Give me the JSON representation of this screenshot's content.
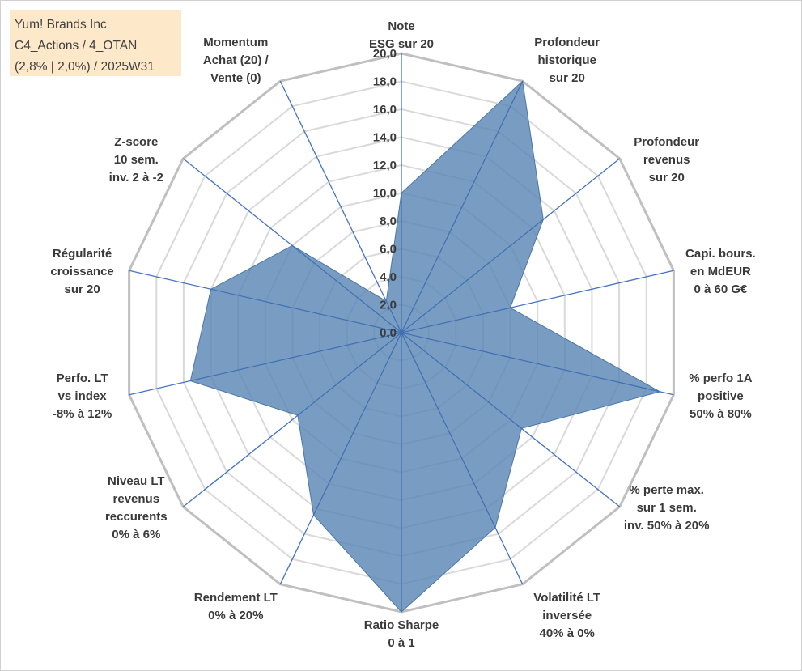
{
  "info_box": {
    "line1": "Yum! Brands Inc",
    "line2": "C4_Actions / 4_OTAN",
    "line3": "(2,8% | 2,0%) / 2025W31"
  },
  "colors": {
    "fill": "#5b86b6",
    "fill_opacity": 0.82,
    "grid_outer": "#bfbfbf",
    "grid_inner": "#d9d9d9",
    "spoke": "#4472c4",
    "info_bg": "#fde9c9"
  },
  "chart_data": {
    "type": "radar",
    "rlim": [
      0,
      20
    ],
    "rtick_step": 2,
    "tick_labels": [
      "0,0",
      "2,0",
      "4,0",
      "6,0",
      "8,0",
      "10,0",
      "12,0",
      "14,0",
      "16,0",
      "18,0",
      "20,0"
    ],
    "grid": true,
    "legend": "none",
    "axes": [
      {
        "label": [
          "Note",
          "ESG sur 20"
        ],
        "value": 10.0
      },
      {
        "label": [
          "Profondeur",
          "historique",
          "sur 20"
        ],
        "value": 20.0
      },
      {
        "label": [
          "Profondeur",
          "revenus",
          "sur 20"
        ],
        "value": 13.0
      },
      {
        "label": [
          "Capi. bours.",
          "en MdEUR",
          "0 à 60 G€"
        ],
        "value": 8.0
      },
      {
        "label": [
          "% perfo 1A",
          "positive",
          "50% à 80%"
        ],
        "value": 19.0
      },
      {
        "label": [
          "% perte max.",
          "sur 1 sem.",
          "inv. 50% à 20%"
        ],
        "value": 11.0
      },
      {
        "label": [
          "Volatilité LT",
          "inversée",
          "40% à 0%"
        ],
        "value": 15.5
      },
      {
        "label": [
          "Ratio Sharpe",
          "0 à 1"
        ],
        "value": 20.0
      },
      {
        "label": [
          "Rendement LT",
          "0% à 20%"
        ],
        "value": 14.5
      },
      {
        "label": [
          "Niveau LT",
          "revenus",
          "reccurents",
          "0% à 6%"
        ],
        "value": 9.5
      },
      {
        "label": [
          "Perfo. LT",
          "vs index",
          "-8% à 12%"
        ],
        "value": 15.5
      },
      {
        "label": [
          "Régularité",
          "croissance",
          "sur 20"
        ],
        "value": 14.0
      },
      {
        "label": [
          "Z-score",
          "10 sem.",
          "inv. 2 à -2"
        ],
        "value": 10.0
      },
      {
        "label": [
          "Momentum",
          "Achat (20) /",
          "Vente (0)"
        ],
        "value": 2.5
      }
    ]
  }
}
